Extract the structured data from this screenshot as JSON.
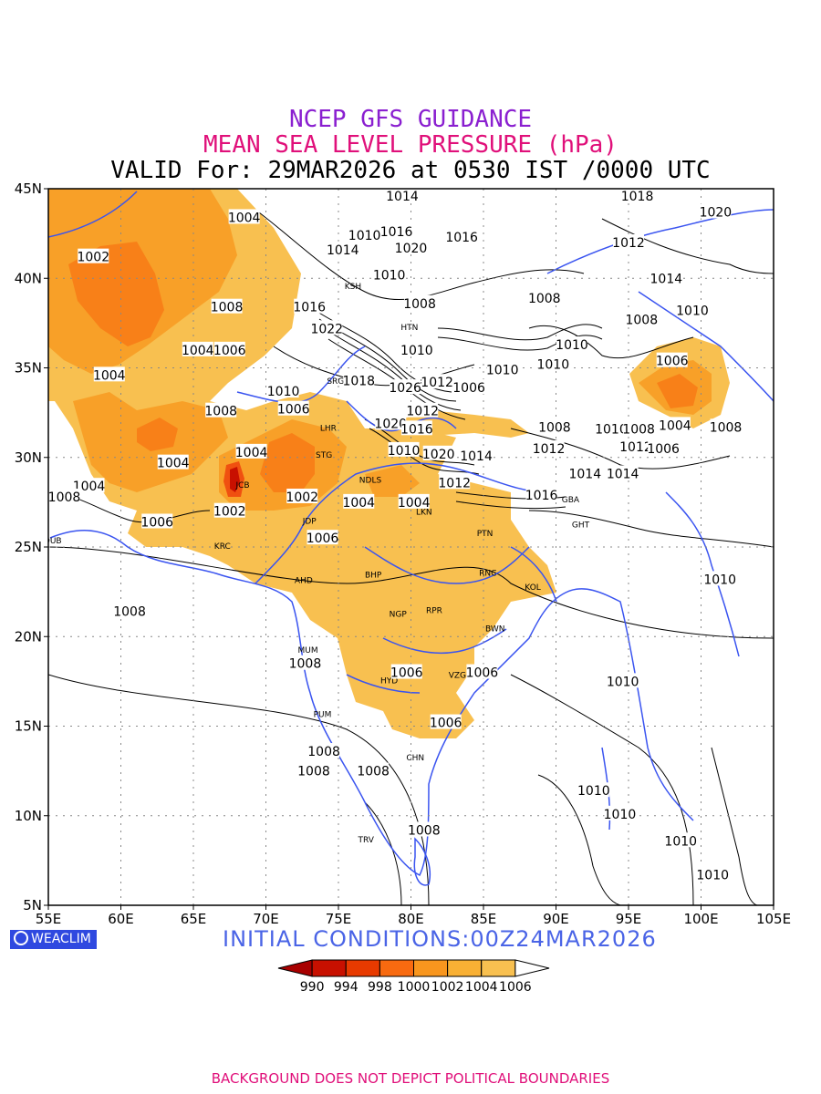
{
  "titles": {
    "line1": "NCEP GFS GUIDANCE",
    "line2": "MEAN SEA LEVEL PRESSURE (hPa)",
    "line3": "VALID For: 29MAR2026 at 0530 IST /0000 UTC"
  },
  "axes": {
    "lon_labels": [
      "55E",
      "60E",
      "65E",
      "70E",
      "75E",
      "80E",
      "85E",
      "90E",
      "95E",
      "100E",
      "105E"
    ],
    "lat_labels": [
      "45N",
      "40N",
      "35N",
      "30N",
      "25N",
      "20N",
      "15N",
      "10N",
      "5N"
    ]
  },
  "legend": {
    "levels": [
      "990",
      "994",
      "998",
      "1000",
      "1002",
      "1004",
      "1006"
    ],
    "colors": [
      "#a80000",
      "#c81000",
      "#e83a00",
      "#f86a10",
      "#f8961e",
      "#f8b034",
      "#f8c050"
    ]
  },
  "brand": {
    "label": "WEACLIM"
  },
  "initial_conditions": "INITIAL CONDITIONS:00Z24MAR2026",
  "footer": "BACKGROUND DOES NOT DEPICT POLITICAL BOUNDARIES",
  "cities": [
    {
      "code": "KSH",
      "lon": 76.0,
      "lat": 39.4
    },
    {
      "code": "HTN",
      "lon": 79.9,
      "lat": 37.1
    },
    {
      "code": "SRG",
      "lon": 74.8,
      "lat": 34.1
    },
    {
      "code": "LHR",
      "lon": 74.3,
      "lat": 31.5
    },
    {
      "code": "STG",
      "lon": 74.0,
      "lat": 30.0
    },
    {
      "code": "NDLS",
      "lon": 77.2,
      "lat": 28.6
    },
    {
      "code": "JCB",
      "lon": 68.4,
      "lat": 28.3
    },
    {
      "code": "JDP",
      "lon": 73.0,
      "lat": 26.3
    },
    {
      "code": "LKN",
      "lon": 80.9,
      "lat": 26.8
    },
    {
      "code": "PTN",
      "lon": 85.1,
      "lat": 25.6
    },
    {
      "code": "KRC",
      "lon": 67.0,
      "lat": 24.9
    },
    {
      "code": "AHD",
      "lon": 72.6,
      "lat": 23.0
    },
    {
      "code": "BHP",
      "lon": 77.4,
      "lat": 23.3
    },
    {
      "code": "RNC",
      "lon": 85.3,
      "lat": 23.4
    },
    {
      "code": "KOL",
      "lon": 88.4,
      "lat": 22.6
    },
    {
      "code": "NGP",
      "lon": 79.1,
      "lat": 21.1
    },
    {
      "code": "RPR",
      "lon": 81.6,
      "lat": 21.3
    },
    {
      "code": "BWN",
      "lon": 85.8,
      "lat": 20.3
    },
    {
      "code": "MUM",
      "lon": 72.9,
      "lat": 19.1
    },
    {
      "code": "HYD",
      "lon": 78.5,
      "lat": 17.4
    },
    {
      "code": "VZG",
      "lon": 83.2,
      "lat": 17.7
    },
    {
      "code": "PUM",
      "lon": 73.9,
      "lat": 15.5
    },
    {
      "code": "CHN",
      "lon": 80.3,
      "lat": 13.1
    },
    {
      "code": "TRV",
      "lon": 76.9,
      "lat": 8.5
    },
    {
      "code": "GHT",
      "lon": 91.7,
      "lat": 26.1
    },
    {
      "code": "DUB",
      "lon": 55.3,
      "lat": 25.2
    },
    {
      "code": "GBA",
      "lon": 91.0,
      "lat": 27.5
    }
  ],
  "contour_labels": [
    {
      "t": "1004",
      "lon": 68.5,
      "lat": 43.4
    },
    {
      "t": "1014",
      "lon": 79.4,
      "lat": 44.6
    },
    {
      "t": "1018",
      "lon": 95.6,
      "lat": 44.6
    },
    {
      "t": "1020",
      "lon": 101.0,
      "lat": 43.7
    },
    {
      "t": "1002",
      "lon": 58.1,
      "lat": 41.2
    },
    {
      "t": "1010",
      "lon": 76.8,
      "lat": 42.4
    },
    {
      "t": "1016",
      "lon": 79.0,
      "lat": 42.6
    },
    {
      "t": "1016",
      "lon": 83.5,
      "lat": 42.3
    },
    {
      "t": "1020",
      "lon": 80.0,
      "lat": 41.7
    },
    {
      "t": "1012",
      "lon": 95.0,
      "lat": 42.0
    },
    {
      "t": "1014",
      "lon": 75.3,
      "lat": 41.6
    },
    {
      "t": "1010",
      "lon": 78.5,
      "lat": 40.2
    },
    {
      "t": "1014",
      "lon": 97.6,
      "lat": 40.0
    },
    {
      "t": "1008",
      "lon": 67.3,
      "lat": 38.4
    },
    {
      "t": "1016",
      "lon": 73.0,
      "lat": 38.4
    },
    {
      "t": "1008",
      "lon": 80.6,
      "lat": 38.6
    },
    {
      "t": "1008",
      "lon": 89.2,
      "lat": 38.9
    },
    {
      "t": "1008",
      "lon": 95.9,
      "lat": 37.7
    },
    {
      "t": "1010",
      "lon": 99.4,
      "lat": 38.2
    },
    {
      "t": "1022",
      "lon": 74.2,
      "lat": 37.2
    },
    {
      "t": "1004",
      "lon": 65.3,
      "lat": 36.0
    },
    {
      "t": "1006",
      "lon": 67.5,
      "lat": 36.0
    },
    {
      "t": "1010",
      "lon": 80.4,
      "lat": 36.0
    },
    {
      "t": "1010",
      "lon": 91.1,
      "lat": 36.3
    },
    {
      "t": "1004",
      "lon": 59.2,
      "lat": 34.6
    },
    {
      "t": "1018",
      "lon": 76.4,
      "lat": 34.3
    },
    {
      "t": "1012",
      "lon": 81.8,
      "lat": 34.2
    },
    {
      "t": "1006",
      "lon": 84.0,
      "lat": 33.9
    },
    {
      "t": "1010",
      "lon": 86.3,
      "lat": 34.9
    },
    {
      "t": "1010",
      "lon": 89.8,
      "lat": 35.2
    },
    {
      "t": "1006",
      "lon": 98.0,
      "lat": 35.4
    },
    {
      "t": "1010",
      "lon": 71.2,
      "lat": 33.7
    },
    {
      "t": "1026",
      "lon": 79.6,
      "lat": 33.9
    },
    {
      "t": "1008",
      "lon": 66.9,
      "lat": 32.6
    },
    {
      "t": "1006",
      "lon": 71.9,
      "lat": 32.7
    },
    {
      "t": "1012",
      "lon": 80.8,
      "lat": 32.6
    },
    {
      "t": "1020",
      "lon": 78.6,
      "lat": 31.9
    },
    {
      "t": "1016",
      "lon": 80.4,
      "lat": 31.6
    },
    {
      "t": "1008",
      "lon": 89.9,
      "lat": 31.7
    },
    {
      "t": "1010",
      "lon": 93.8,
      "lat": 31.6
    },
    {
      "t": "1008",
      "lon": 95.7,
      "lat": 31.6
    },
    {
      "t": "1004",
      "lon": 98.2,
      "lat": 31.8
    },
    {
      "t": "1008",
      "lon": 101.7,
      "lat": 31.7
    },
    {
      "t": "1004",
      "lon": 69.0,
      "lat": 30.3
    },
    {
      "t": "1010",
      "lon": 79.5,
      "lat": 30.4
    },
    {
      "t": "1020",
      "lon": 81.9,
      "lat": 30.2
    },
    {
      "t": "1014",
      "lon": 84.5,
      "lat": 30.1
    },
    {
      "t": "1012",
      "lon": 89.5,
      "lat": 30.5
    },
    {
      "t": "1012",
      "lon": 95.5,
      "lat": 30.6
    },
    {
      "t": "1006",
      "lon": 97.4,
      "lat": 30.5
    },
    {
      "t": "1004",
      "lon": 63.6,
      "lat": 29.7
    },
    {
      "t": "1004",
      "lon": 57.8,
      "lat": 28.4
    },
    {
      "t": "1014",
      "lon": 92.0,
      "lat": 29.1
    },
    {
      "t": "1014",
      "lon": 94.6,
      "lat": 29.1
    },
    {
      "t": "1008",
      "lon": 56.1,
      "lat": 27.8
    },
    {
      "t": "1002",
      "lon": 72.5,
      "lat": 27.8
    },
    {
      "t": "1004",
      "lon": 76.4,
      "lat": 27.5
    },
    {
      "t": "1004",
      "lon": 80.2,
      "lat": 27.5
    },
    {
      "t": "1012",
      "lon": 83.0,
      "lat": 28.6
    },
    {
      "t": "1016",
      "lon": 89.0,
      "lat": 27.9
    },
    {
      "t": "1002",
      "lon": 67.5,
      "lat": 27.0
    },
    {
      "t": "1006",
      "lon": 62.5,
      "lat": 26.4
    },
    {
      "t": "1006",
      "lon": 73.9,
      "lat": 25.5
    },
    {
      "t": "1010",
      "lon": 101.3,
      "lat": 23.2
    },
    {
      "t": "1008",
      "lon": 60.6,
      "lat": 21.4
    },
    {
      "t": "1008",
      "lon": 72.7,
      "lat": 18.5
    },
    {
      "t": "1006",
      "lon": 79.7,
      "lat": 18.0
    },
    {
      "t": "1006",
      "lon": 84.9,
      "lat": 18.0
    },
    {
      "t": "1010",
      "lon": 94.6,
      "lat": 17.5
    },
    {
      "t": "1006",
      "lon": 82.4,
      "lat": 15.2
    },
    {
      "t": "1008",
      "lon": 74.0,
      "lat": 13.6
    },
    {
      "t": "1008",
      "lon": 73.3,
      "lat": 12.5
    },
    {
      "t": "1008",
      "lon": 77.4,
      "lat": 12.5
    },
    {
      "t": "1010",
      "lon": 92.6,
      "lat": 11.4
    },
    {
      "t": "1010",
      "lon": 94.4,
      "lat": 10.1
    },
    {
      "t": "1010",
      "lon": 98.6,
      "lat": 8.6
    },
    {
      "t": "1008",
      "lon": 80.9,
      "lat": 9.2
    },
    {
      "t": "1010",
      "lon": 100.8,
      "lat": 6.7
    }
  ]
}
